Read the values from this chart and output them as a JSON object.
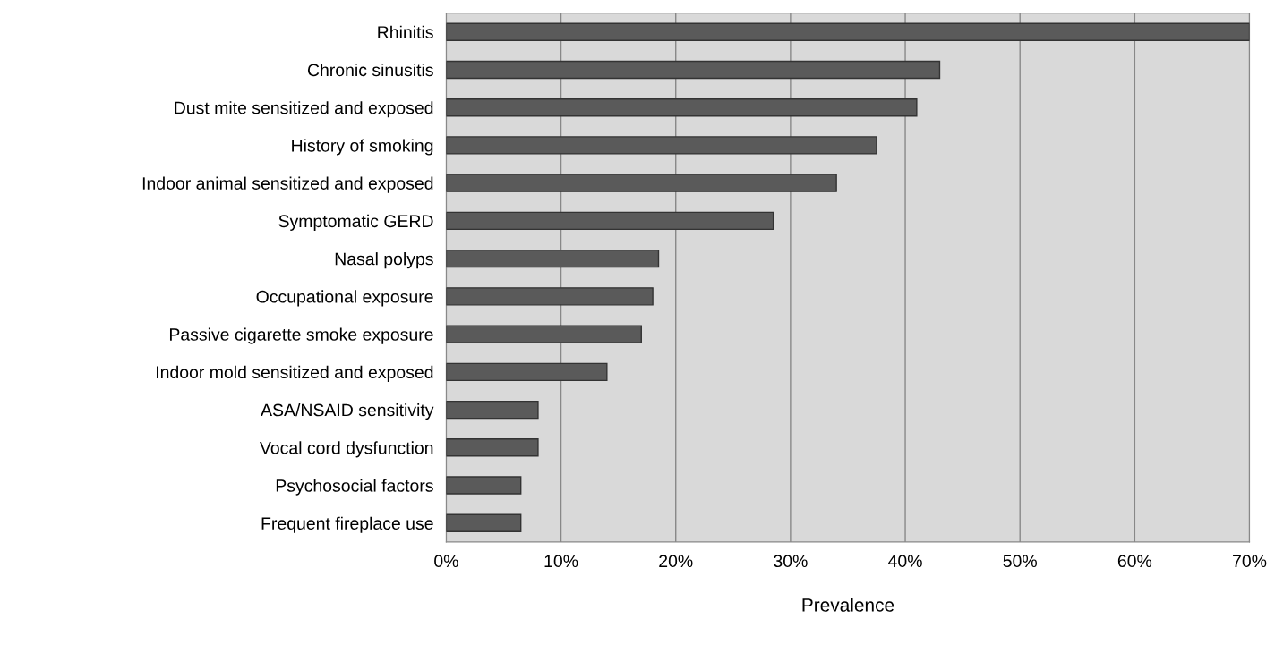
{
  "chart_data": {
    "type": "bar",
    "orientation": "horizontal",
    "xlabel": "Prevalence",
    "categories": [
      "Rhinitis",
      "Chronic sinusitis",
      "Dust mite sensitized and exposed",
      "History of smoking",
      "Indoor animal sensitized and exposed",
      "Symptomatic GERD",
      "Nasal polyps",
      "Occupational exposure",
      "Passive cigarette smoke exposure",
      "Indoor mold sensitized and exposed",
      "ASA/NSAID sensitivity",
      "Vocal cord dysfunction",
      "Psychosocial factors",
      "Frequent fireplace use"
    ],
    "values": [
      70,
      43,
      41,
      37.5,
      34,
      28.5,
      18.5,
      18,
      17,
      14,
      8,
      8,
      6.5,
      6.5
    ],
    "color": "#5a5a5a",
    "xlim": [
      0,
      70
    ],
    "xticks": [
      {
        "value": 0,
        "label": "0%"
      },
      {
        "value": 10,
        "label": "10%"
      },
      {
        "value": 20,
        "label": "20%"
      },
      {
        "value": 30,
        "label": "30%"
      },
      {
        "value": 40,
        "label": "40%"
      },
      {
        "value": 50,
        "label": "50%"
      },
      {
        "value": 60,
        "label": "60%"
      },
      {
        "value": 70,
        "label": "70%"
      }
    ],
    "grid": "x"
  }
}
